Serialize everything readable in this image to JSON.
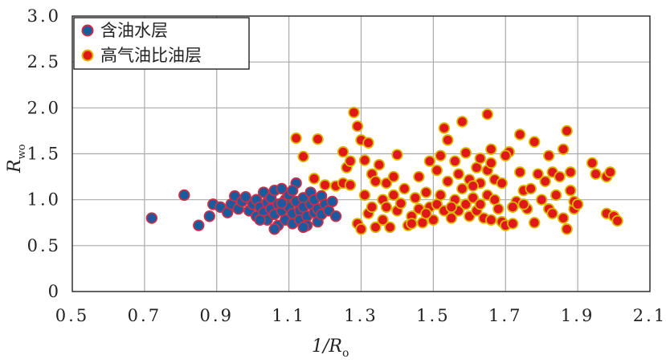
{
  "chart_data": {
    "type": "scatter",
    "xlabel": "1/R",
    "xlabel_sub": "o",
    "ylabel": "R",
    "ylabel_sub": "wo",
    "xlim": [
      0.5,
      2.1
    ],
    "ylim": [
      0,
      3.0
    ],
    "x_ticks": [
      0.5,
      0.7,
      0.9,
      1.1,
      1.3,
      1.5,
      1.7,
      1.9,
      2.1
    ],
    "x_tick_labels": [
      "0.5",
      "0.7",
      "0.9",
      "1.1",
      "1.3",
      "1.5",
      "1.7",
      "1.9",
      "2.1"
    ],
    "y_ticks": [
      0,
      0.5,
      1.0,
      1.5,
      2.0,
      2.5,
      3.0
    ],
    "y_tick_labels": [
      "0",
      "0.5",
      "1.0",
      "1.5",
      "2.0",
      "2.5",
      "3.0"
    ],
    "grid": true,
    "legend_position": "top-left",
    "series": [
      {
        "name": "含油水层",
        "color": "#1a5a9e",
        "edge": "#c8304a",
        "points": [
          [
            0.72,
            0.8
          ],
          [
            0.81,
            1.05
          ],
          [
            0.85,
            0.72
          ],
          [
            0.88,
            0.82
          ],
          [
            0.89,
            0.95
          ],
          [
            0.91,
            0.92
          ],
          [
            0.93,
            0.86
          ],
          [
            0.94,
            0.95
          ],
          [
            0.95,
            1.04
          ],
          [
            0.96,
            0.9
          ],
          [
            0.97,
            0.98
          ],
          [
            0.98,
            1.03
          ],
          [
            0.99,
            0.88
          ],
          [
            1.0,
            0.95
          ],
          [
            1.01,
            0.82
          ],
          [
            1.01,
            1.0
          ],
          [
            1.02,
            0.92
          ],
          [
            1.03,
            1.08
          ],
          [
            1.03,
            0.86
          ],
          [
            1.04,
            0.97
          ],
          [
            1.04,
            0.78
          ],
          [
            1.05,
            1.02
          ],
          [
            1.05,
            0.9
          ],
          [
            1.06,
            1.1
          ],
          [
            1.06,
            0.84
          ],
          [
            1.07,
            0.95
          ],
          [
            1.07,
            0.72
          ],
          [
            1.08,
            1.12
          ],
          [
            1.08,
            0.88
          ],
          [
            1.09,
            1.0
          ],
          [
            1.09,
            0.78
          ],
          [
            1.1,
            0.92
          ],
          [
            1.1,
            1.05
          ],
          [
            1.11,
            0.85
          ],
          [
            1.11,
            0.74
          ],
          [
            1.12,
            0.98
          ],
          [
            1.12,
            1.18
          ],
          [
            1.13,
            0.88
          ],
          [
            1.13,
            0.78
          ],
          [
            1.14,
            1.02
          ],
          [
            1.14,
            0.92
          ],
          [
            1.15,
            0.82
          ],
          [
            1.15,
            0.72
          ],
          [
            1.16,
            1.08
          ],
          [
            1.16,
            0.95
          ],
          [
            1.17,
            0.86
          ],
          [
            1.17,
            1.0
          ],
          [
            1.18,
            0.76
          ],
          [
            1.18,
            0.9
          ],
          [
            1.19,
            1.04
          ],
          [
            1.19,
            0.84
          ],
          [
            1.2,
            0.95
          ],
          [
            1.21,
            0.88
          ],
          [
            1.22,
            0.98
          ],
          [
            1.23,
            0.82
          ],
          [
            1.08,
            0.96
          ],
          [
            1.02,
            0.78
          ],
          [
            1.11,
            1.1
          ],
          [
            1.14,
            0.7
          ],
          [
            1.06,
            0.68
          ]
        ]
      },
      {
        "name": "高气油比油层",
        "color": "#e01818",
        "edge": "#d8b800",
        "points": [
          [
            1.12,
            1.67
          ],
          [
            1.14,
            1.47
          ],
          [
            1.17,
            1.23
          ],
          [
            1.18,
            1.66
          ],
          [
            1.2,
            1.16
          ],
          [
            1.23,
            1.15
          ],
          [
            1.25,
            1.52
          ],
          [
            1.25,
            1.18
          ],
          [
            1.26,
            1.35
          ],
          [
            1.27,
            1.42
          ],
          [
            1.27,
            1.16
          ],
          [
            1.28,
            1.95
          ],
          [
            1.29,
            1.8
          ],
          [
            1.29,
            0.74
          ],
          [
            1.3,
            0.68
          ],
          [
            1.3,
            1.65
          ],
          [
            1.31,
            1.43
          ],
          [
            1.31,
            1.05
          ],
          [
            1.32,
            0.85
          ],
          [
            1.32,
            1.62
          ],
          [
            1.33,
            1.28
          ],
          [
            1.33,
            0.92
          ],
          [
            1.34,
            0.7
          ],
          [
            1.34,
            1.2
          ],
          [
            1.35,
            1.38
          ],
          [
            1.36,
            1.0
          ],
          [
            1.36,
            0.78
          ],
          [
            1.37,
            1.18
          ],
          [
            1.38,
            0.7
          ],
          [
            1.39,
            1.05
          ],
          [
            1.39,
            1.25
          ],
          [
            1.4,
            0.88
          ],
          [
            1.4,
            1.49
          ],
          [
            1.41,
            0.96
          ],
          [
            1.42,
            1.12
          ],
          [
            1.43,
            0.72
          ],
          [
            1.44,
            0.82
          ],
          [
            1.45,
            1.02
          ],
          [
            1.46,
            1.25
          ],
          [
            1.46,
            0.9
          ],
          [
            1.47,
            0.75
          ],
          [
            1.48,
            1.08
          ],
          [
            1.49,
            0.92
          ],
          [
            1.49,
            1.42
          ],
          [
            1.5,
            0.78
          ],
          [
            1.51,
            1.32
          ],
          [
            1.51,
            0.95
          ],
          [
            1.52,
            1.48
          ],
          [
            1.52,
            1.05
          ],
          [
            1.53,
            1.78
          ],
          [
            1.53,
            0.88
          ],
          [
            1.54,
            1.2
          ],
          [
            1.54,
            1.65
          ],
          [
            1.55,
            0.8
          ],
          [
            1.56,
            1.42
          ],
          [
            1.56,
            1.0
          ],
          [
            1.57,
            1.28
          ],
          [
            1.57,
            0.88
          ],
          [
            1.58,
            1.12
          ],
          [
            1.59,
            1.51
          ],
          [
            1.59,
            0.95
          ],
          [
            1.6,
            1.22
          ],
          [
            1.6,
            0.82
          ],
          [
            1.61,
            1.02
          ],
          [
            1.62,
            1.35
          ],
          [
            1.62,
            0.88
          ],
          [
            1.63,
            1.18
          ],
          [
            1.63,
            1.45
          ],
          [
            1.64,
            0.8
          ],
          [
            1.65,
            1.05
          ],
          [
            1.65,
            1.93
          ],
          [
            1.65,
            1.32
          ],
          [
            1.66,
            0.78
          ],
          [
            1.66,
            1.4
          ],
          [
            1.67,
            1.22
          ],
          [
            1.67,
            1.0
          ],
          [
            1.68,
            0.9
          ],
          [
            1.69,
            1.18
          ],
          [
            1.69,
            0.76
          ],
          [
            1.7,
            0.72
          ],
          [
            1.71,
            1.52
          ],
          [
            1.72,
            0.74
          ],
          [
            1.73,
            0.98
          ],
          [
            1.74,
            1.71
          ],
          [
            1.74,
            1.3
          ],
          [
            1.75,
            1.1
          ],
          [
            1.76,
            0.9
          ],
          [
            1.77,
            1.12
          ],
          [
            1.78,
            1.63
          ],
          [
            1.78,
            0.75
          ],
          [
            1.79,
            1.28
          ],
          [
            1.8,
            1.0
          ],
          [
            1.81,
            1.2
          ],
          [
            1.82,
            1.48
          ],
          [
            1.82,
            0.9
          ],
          [
            1.83,
            1.3
          ],
          [
            1.84,
            1.05
          ],
          [
            1.85,
            1.25
          ],
          [
            1.86,
            1.55
          ],
          [
            1.86,
            0.8
          ],
          [
            1.87,
            1.75
          ],
          [
            1.87,
            0.68
          ],
          [
            1.88,
            1.3
          ],
          [
            1.88,
            1.1
          ],
          [
            1.89,
            0.9
          ],
          [
            1.89,
            0.98
          ],
          [
            1.94,
            1.4
          ],
          [
            1.95,
            1.28
          ],
          [
            1.98,
            1.25
          ],
          [
            1.99,
            1.3
          ],
          [
            1.98,
            0.85
          ],
          [
            2.0,
            0.82
          ],
          [
            2.01,
            0.77
          ],
          [
            1.7,
            1.48
          ],
          [
            1.58,
            1.85
          ],
          [
            1.75,
            0.95
          ],
          [
            1.61,
            1.15
          ],
          [
            1.66,
            1.55
          ],
          [
            1.72,
            0.92
          ],
          [
            1.44,
            0.74
          ],
          [
            1.37,
            0.92
          ],
          [
            1.48,
            0.85
          ],
          [
            1.55,
            0.92
          ],
          [
            1.63,
            0.95
          ],
          [
            1.83,
            0.85
          ],
          [
            1.9,
            0.95
          ]
        ]
      }
    ]
  }
}
